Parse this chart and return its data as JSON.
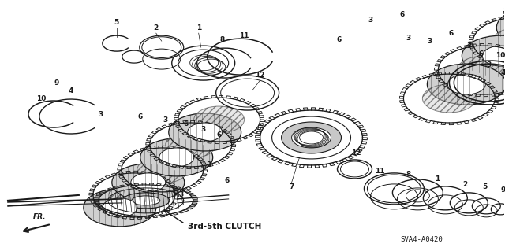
{
  "bg_color": "#ffffff",
  "line_color": "#1a1a1a",
  "fig_width": 6.4,
  "fig_height": 3.19,
  "part_label": "3rd-5th CLUTCH",
  "part_code": "SVA4-A0420",
  "fr_label": "FR."
}
